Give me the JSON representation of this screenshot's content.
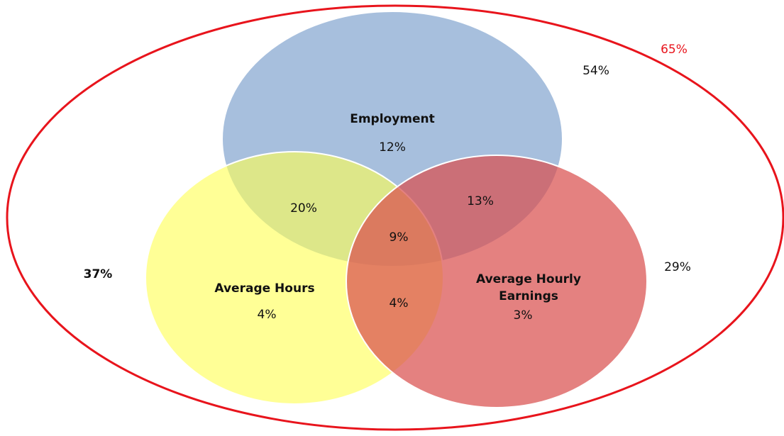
{
  "universe": {
    "label": "65%"
  },
  "outside": {
    "employment_side": "54%",
    "hours_side": "37%",
    "earnings_side": "29%"
  },
  "sets": [
    {
      "name": "Employment",
      "only": "12%"
    },
    {
      "name": "Average Hours",
      "only": "4%"
    },
    {
      "name": "Average Hourly Earnings",
      "only": "3%"
    }
  ],
  "overlaps": {
    "employment_hours": "20%",
    "employment_earnings": "13%",
    "hours_earnings": "4%",
    "all_three": "9%"
  }
}
